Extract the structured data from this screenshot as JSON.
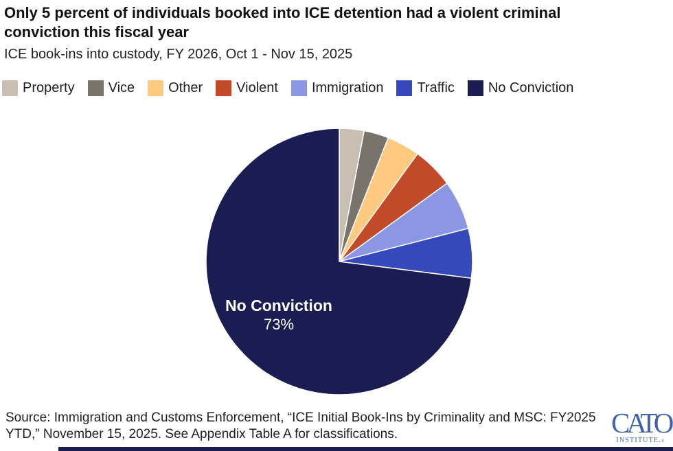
{
  "header": {
    "title": "Only 5 percent of individuals booked into ICE detention had a violent criminal conviction this fiscal year",
    "subtitle": "ICE book-ins into custody, FY 2026, Oct 1 - Nov 15, 2025"
  },
  "chart_data": {
    "type": "pie",
    "title": "Only 5 percent of individuals booked into ICE detention had a violent criminal conviction this fiscal year",
    "subtitle": "ICE book-ins into custody, FY 2026, Oct 1 - Nov 15, 2025",
    "unit": "percent",
    "start_angle": "12 o'clock",
    "direction": "clockwise",
    "legend_position": "top",
    "series": [
      {
        "name": "Property",
        "value": 3,
        "color": "#c8beb1"
      },
      {
        "name": "Vice",
        "value": 3,
        "color": "#7a736b"
      },
      {
        "name": "Other",
        "value": 4,
        "color": "#fdca80"
      },
      {
        "name": "Violent",
        "value": 5,
        "color": "#c14a28"
      },
      {
        "name": "Immigration",
        "value": 6,
        "color": "#8b97e2"
      },
      {
        "name": "Traffic",
        "value": 6,
        "color": "#3649bb"
      },
      {
        "name": "No Conviction",
        "value": 73,
        "color": "#1b1c52"
      }
    ],
    "slice_label": {
      "line1": "No Conviction",
      "line2": "73%"
    }
  },
  "footer": {
    "source_text": "Source: Immigration and Customs Enforcement, “ICE Initial Book-Ins by Criminality and MSC: FY2025 YTD,” November 15, 2025. See Appendix Table A for classifications.",
    "logo_line1": "CATO",
    "logo_line2": "INSTITUTE.",
    "logo_registered": "®"
  },
  "colors": {
    "accent_navy": "#1b1c52",
    "cato_blue": "#4263ac",
    "background": "#ffffff"
  }
}
